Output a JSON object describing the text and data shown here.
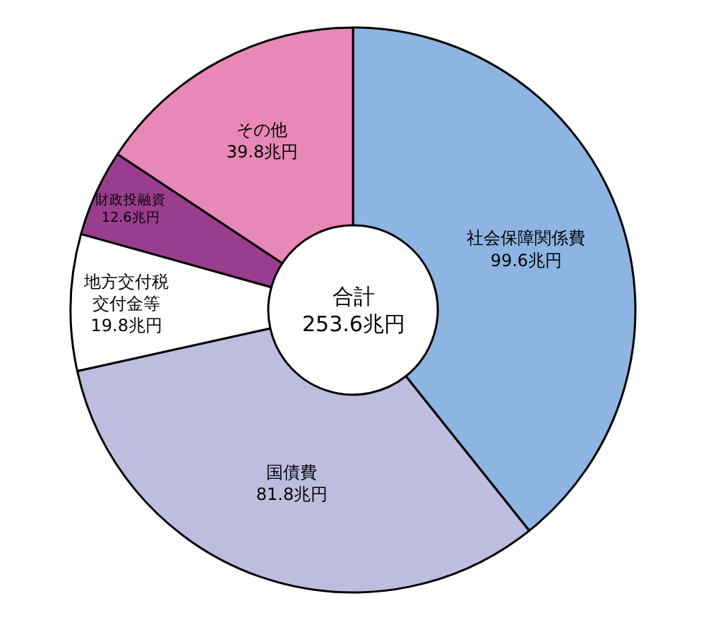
{
  "chart_data": {
    "type": "donut",
    "categories": [
      "社会保障関係費",
      "国債費",
      "地方交付税交付金等",
      "財政投融資",
      "その他"
    ],
    "values": [
      99.6,
      81.8,
      19.8,
      12.6,
      39.8
    ],
    "value_labels": [
      "99.6兆円",
      "81.8兆円",
      "19.8兆円",
      "12.6兆円",
      "39.8兆円"
    ],
    "colors": [
      "#8db4e2",
      "#bebde0",
      "#ffffff",
      "#9a3d8e",
      "#e888b6"
    ],
    "annotations": [
      "合計\n253.6兆円"
    ],
    "legend": false
  }
}
